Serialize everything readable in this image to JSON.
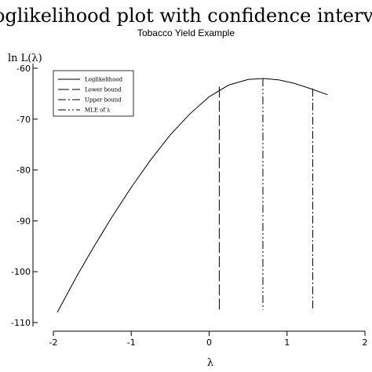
{
  "chart_data": {
    "type": "line",
    "title": "Loglikelihood plot with confidence interval",
    "subtitle": "Tobacco Yield Example",
    "xlabel": "λ",
    "ylabel": "ln L(λ)",
    "xlim": [
      -2,
      2
    ],
    "ylim": [
      -110,
      -60
    ],
    "xticks": [
      -2,
      -1,
      0,
      1,
      2
    ],
    "xtick_labels": [
      "-2",
      "-1",
      "0",
      "1",
      "2"
    ],
    "yticks": [
      -60,
      -70,
      -80,
      -90,
      -100,
      -110
    ],
    "ytick_labels": [
      "-60",
      "-70",
      "-80",
      "-90",
      "-100",
      "-110"
    ],
    "grid": false,
    "legend_position": "top-left",
    "series": [
      {
        "name": "Loglikelihood",
        "style": "solid",
        "x": [
          -1.95,
          -1.7,
          -1.5,
          -1.25,
          -1.0,
          -0.75,
          -0.5,
          -0.25,
          0.0,
          0.25,
          0.5,
          0.7,
          0.9,
          1.1,
          1.3,
          1.52
        ],
        "y": [
          -108.0,
          -100.9,
          -95.6,
          -89.3,
          -83.4,
          -78.0,
          -73.1,
          -69.0,
          -65.6,
          -63.3,
          -62.2,
          -62.0,
          -62.3,
          -63.0,
          -64.0,
          -65.2
        ]
      }
    ],
    "vertical_lines": [
      {
        "name": "Lower bound",
        "style": "long-dash",
        "x": 0.13,
        "y_top": -63.6,
        "y_bottom": -107.5
      },
      {
        "name": "Upper bound",
        "style": "dash-dot",
        "x": 1.33,
        "y_top": -64.0,
        "y_bottom": -107.5
      },
      {
        "name": "MLE of λ",
        "style": "dash-dot-dot",
        "x": 0.69,
        "y_top": -62.0,
        "y_bottom": -107.5
      }
    ],
    "legend": [
      "Loglikelihood",
      "Lower bound",
      "Upper bound",
      "MLE of λ"
    ]
  }
}
